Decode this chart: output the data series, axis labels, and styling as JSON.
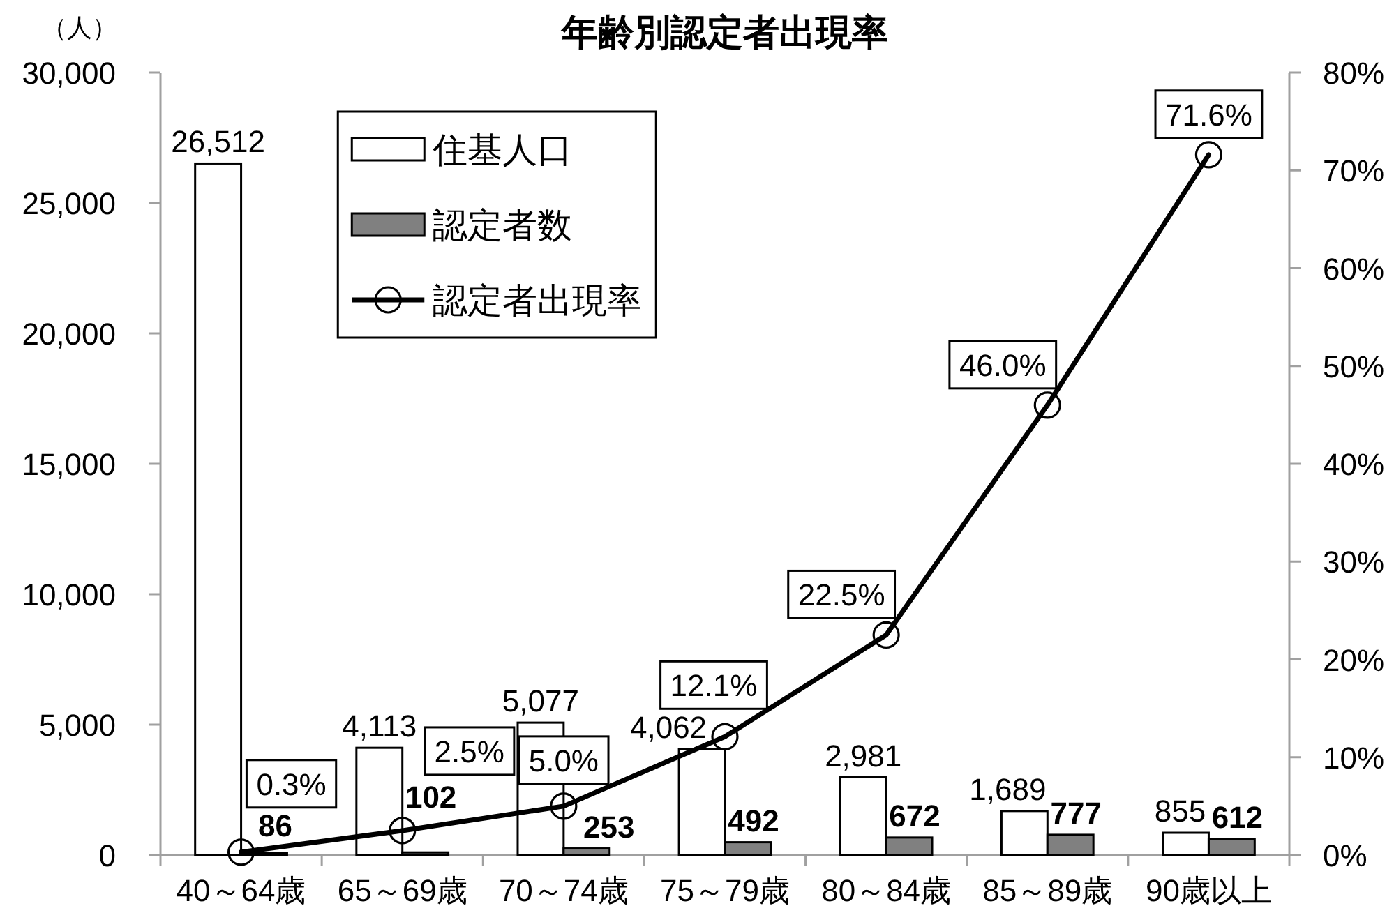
{
  "chart_data": {
    "type": "bar",
    "title": "年齢別認定者出現率",
    "ylabel": "（人）",
    "categories": [
      "40～64歳",
      "65～69歳",
      "70～74歳",
      "75～79歳",
      "80～84歳",
      "85～89歳",
      "90歳以上"
    ],
    "series": [
      {
        "name": "住基人口",
        "color": "#ffffff",
        "values": [
          26512,
          4113,
          5077,
          4062,
          2981,
          1689,
          855
        ],
        "value_labels": [
          "26,512",
          "4,113",
          "5,077",
          "4,062",
          "2,981",
          "1,689",
          "855"
        ]
      },
      {
        "name": "認定者数",
        "color": "#808080",
        "values": [
          86,
          102,
          253,
          492,
          672,
          777,
          612
        ],
        "value_labels": [
          "86",
          "102",
          "253",
          "492",
          "672",
          "777",
          "612"
        ]
      },
      {
        "name": "認定者出現率",
        "type": "line",
        "axis": "y2",
        "color": "#000000",
        "values": [
          0.3,
          2.5,
          5.0,
          12.1,
          22.5,
          46.0,
          71.6
        ],
        "value_labels": [
          "0.3%",
          "2.5%",
          "5.0%",
          "12.1%",
          "22.5%",
          "46.0%",
          "71.6%"
        ]
      }
    ],
    "ylim": [
      0,
      30000
    ],
    "yticks": [
      0,
      {
        "value": 5000,
        "label": "5,000"
      },
      {
        "value": 10000,
        "label": "10,000"
      },
      {
        "value": 15000,
        "label": "15,000"
      },
      {
        "value": 20000,
        "label": "20,000"
      },
      {
        "value": 25000,
        "label": "25,000"
      },
      {
        "value": 30000,
        "label": "30,000"
      }
    ],
    "y2lim": [
      0,
      80
    ],
    "y2ticks": [
      {
        "value": 0,
        "label": "0%"
      },
      {
        "value": 10,
        "label": "10%"
      },
      {
        "value": 20,
        "label": "20%"
      },
      {
        "value": 30,
        "label": "30%"
      },
      {
        "value": 40,
        "label": "40%"
      },
      {
        "value": 50,
        "label": "50%"
      },
      {
        "value": 60,
        "label": "60%"
      },
      {
        "value": 70,
        "label": "70%"
      },
      {
        "value": 80,
        "label": "80%"
      }
    ],
    "legend": "top left",
    "marker": "circle",
    "line_style": "solid",
    "grid": false
  }
}
